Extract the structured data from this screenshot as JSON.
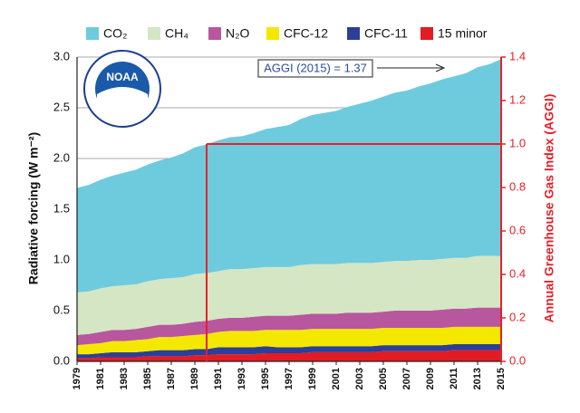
{
  "chart_data": {
    "type": "stacked_area",
    "y_label": "Radiative forcing (W m⁻²)",
    "y2_label": "Annual Greenhouse Gas Index (AGGI)",
    "annotation": "AGGI (2015) = 1.37",
    "logo_text": "NOAA",
    "x": [
      1979,
      1980,
      1981,
      1982,
      1983,
      1984,
      1985,
      1986,
      1987,
      1988,
      1989,
      1990,
      1991,
      1992,
      1993,
      1994,
      1995,
      1996,
      1997,
      1998,
      1999,
      2000,
      2001,
      2002,
      2003,
      2004,
      2005,
      2006,
      2007,
      2008,
      2009,
      2010,
      2011,
      2012,
      2013,
      2014,
      2015
    ],
    "series": [
      {
        "name": "CO₂",
        "color": "#6dcbdd",
        "values": [
          1.03,
          1.05,
          1.07,
          1.09,
          1.11,
          1.13,
          1.15,
          1.17,
          1.19,
          1.22,
          1.25,
          1.27,
          1.29,
          1.3,
          1.31,
          1.33,
          1.36,
          1.38,
          1.4,
          1.44,
          1.47,
          1.49,
          1.51,
          1.54,
          1.57,
          1.6,
          1.63,
          1.66,
          1.68,
          1.71,
          1.74,
          1.77,
          1.79,
          1.82,
          1.86,
          1.89,
          1.94
        ]
      },
      {
        "name": "CH₄",
        "color": "#d5e6c4",
        "values": [
          0.42,
          0.42,
          0.43,
          0.43,
          0.44,
          0.44,
          0.45,
          0.45,
          0.46,
          0.46,
          0.47,
          0.47,
          0.47,
          0.48,
          0.48,
          0.48,
          0.48,
          0.48,
          0.48,
          0.49,
          0.49,
          0.49,
          0.49,
          0.49,
          0.49,
          0.49,
          0.49,
          0.49,
          0.49,
          0.5,
          0.5,
          0.5,
          0.5,
          0.5,
          0.51,
          0.51,
          0.51
        ]
      },
      {
        "name": "N₂O",
        "color": "#b8579e",
        "values": [
          0.1,
          0.1,
          0.11,
          0.11,
          0.11,
          0.11,
          0.12,
          0.12,
          0.12,
          0.12,
          0.13,
          0.13,
          0.13,
          0.13,
          0.13,
          0.14,
          0.14,
          0.14,
          0.14,
          0.15,
          0.15,
          0.15,
          0.15,
          0.16,
          0.16,
          0.16,
          0.16,
          0.17,
          0.17,
          0.17,
          0.17,
          0.18,
          0.18,
          0.18,
          0.19,
          0.19,
          0.19
        ]
      },
      {
        "name": "CFC-12",
        "color": "#f5e800",
        "values": [
          0.09,
          0.1,
          0.1,
          0.11,
          0.11,
          0.12,
          0.12,
          0.13,
          0.13,
          0.14,
          0.14,
          0.15,
          0.15,
          0.16,
          0.16,
          0.16,
          0.16,
          0.17,
          0.17,
          0.17,
          0.17,
          0.17,
          0.17,
          0.17,
          0.17,
          0.17,
          0.17,
          0.17,
          0.17,
          0.17,
          0.17,
          0.17,
          0.17,
          0.17,
          0.17,
          0.17,
          0.17
        ]
      },
      {
        "name": "CFC-11",
        "color": "#2b3f99",
        "values": [
          0.04,
          0.04,
          0.04,
          0.05,
          0.05,
          0.05,
          0.05,
          0.06,
          0.06,
          0.06,
          0.06,
          0.06,
          0.07,
          0.07,
          0.07,
          0.07,
          0.07,
          0.06,
          0.06,
          0.06,
          0.06,
          0.06,
          0.06,
          0.06,
          0.06,
          0.06,
          0.06,
          0.06,
          0.06,
          0.06,
          0.06,
          0.06,
          0.06,
          0.06,
          0.06,
          0.06,
          0.06
        ]
      },
      {
        "name": "15 minor",
        "color": "#e31b23",
        "values": [
          0.03,
          0.03,
          0.04,
          0.04,
          0.04,
          0.04,
          0.05,
          0.05,
          0.05,
          0.05,
          0.06,
          0.06,
          0.07,
          0.07,
          0.07,
          0.07,
          0.08,
          0.08,
          0.08,
          0.08,
          0.09,
          0.09,
          0.09,
          0.09,
          0.09,
          0.09,
          0.1,
          0.1,
          0.1,
          0.1,
          0.1,
          0.1,
          0.11,
          0.11,
          0.11,
          0.11,
          0.11
        ]
      }
    ],
    "aggi_reference": {
      "year": 1990,
      "value": 1
    },
    "xlim": [
      1979,
      2015
    ],
    "xticks": [
      1979,
      1981,
      1983,
      1985,
      1987,
      1989,
      1991,
      1993,
      1995,
      1997,
      1999,
      2001,
      2003,
      2005,
      2007,
      2009,
      2011,
      2013,
      2015
    ],
    "ylim": [
      0,
      3
    ],
    "yticks": [
      {
        "value": 0,
        "label": "0.0"
      },
      0.5,
      {
        "value": 1,
        "label": "1.0"
      },
      1.5,
      {
        "value": 2,
        "label": "2.0"
      },
      2.5,
      {
        "value": 3,
        "label": "3.0"
      }
    ],
    "y2lim": [
      0,
      1.4
    ],
    "y2ticks": [
      {
        "value": 0,
        "label": "0.0"
      },
      0.2,
      0.4,
      0.6,
      0.8,
      {
        "value": 1,
        "label": "1.0"
      },
      1.2,
      1.4
    ],
    "y2_color": "#e8202a",
    "grid": true
  }
}
